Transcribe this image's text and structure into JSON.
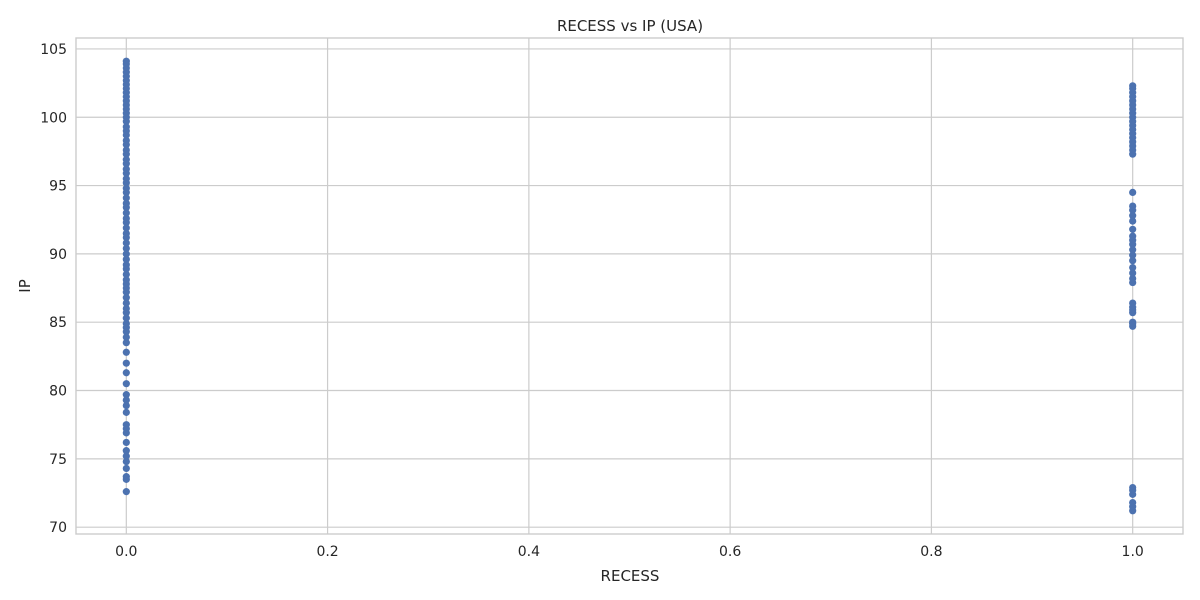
{
  "chart_data": {
    "type": "scatter",
    "title": "RECESS vs IP (USA)",
    "xlabel": "RECESS",
    "ylabel": "IP",
    "xlim": [
      -0.05,
      1.05
    ],
    "ylim": [
      69.5,
      105.8
    ],
    "xticks": [
      0.0,
      0.2,
      0.4,
      0.6,
      0.8,
      1.0
    ],
    "xtick_labels": [
      "0.0",
      "0.2",
      "0.4",
      "0.6",
      "0.8",
      "1.0"
    ],
    "yticks": [
      70,
      75,
      80,
      85,
      90,
      95,
      100,
      105
    ],
    "ytick_labels": [
      "70",
      "75",
      "80",
      "85",
      "90",
      "95",
      "100",
      "105"
    ],
    "grid": true,
    "marker_color": "#4c72b0",
    "series": [
      {
        "x_value": 0,
        "y": [
          72.6,
          73.5,
          73.7,
          74.3,
          74.8,
          75.2,
          75.6,
          76.2,
          76.9,
          77.2,
          77.5,
          78.4,
          78.9,
          79.3,
          79.7,
          80.5,
          81.3,
          82.0,
          82.8,
          83.5,
          83.9,
          84.3,
          84.6,
          84.9,
          85.3,
          85.7,
          86.0,
          86.4,
          86.8,
          87.2,
          87.5,
          87.8,
          88.1,
          88.5,
          88.9,
          89.2,
          89.6,
          90.0,
          90.4,
          90.8,
          91.2,
          91.5,
          91.9,
          92.3,
          92.6,
          93.0,
          93.4,
          93.7,
          94.1,
          94.5,
          94.8,
          95.2,
          95.5,
          95.9,
          96.2,
          96.6,
          96.9,
          97.3,
          97.6,
          98.0,
          98.3,
          98.7,
          99.0,
          99.3,
          99.7,
          100.0,
          100.3,
          100.6,
          100.9,
          101.2,
          101.5,
          101.8,
          102.1,
          102.4,
          102.7,
          103.0,
          103.3,
          103.6,
          103.9,
          104.1
        ]
      },
      {
        "x_value": 1,
        "y": [
          71.2,
          71.5,
          71.8,
          72.4,
          72.7,
          72.9,
          84.7,
          84.9,
          85.0,
          85.7,
          85.9,
          86.1,
          86.4,
          87.9,
          88.2,
          88.6,
          89.0,
          89.5,
          89.9,
          90.3,
          90.7,
          91.0,
          91.3,
          91.8,
          92.4,
          92.8,
          93.2,
          93.5,
          94.5,
          97.3,
          97.6,
          97.9,
          98.2,
          98.5,
          98.8,
          99.1,
          99.4,
          99.7,
          100.0,
          100.3,
          100.6,
          100.9,
          101.2,
          101.5,
          101.8,
          102.1,
          102.3
        ]
      }
    ]
  }
}
